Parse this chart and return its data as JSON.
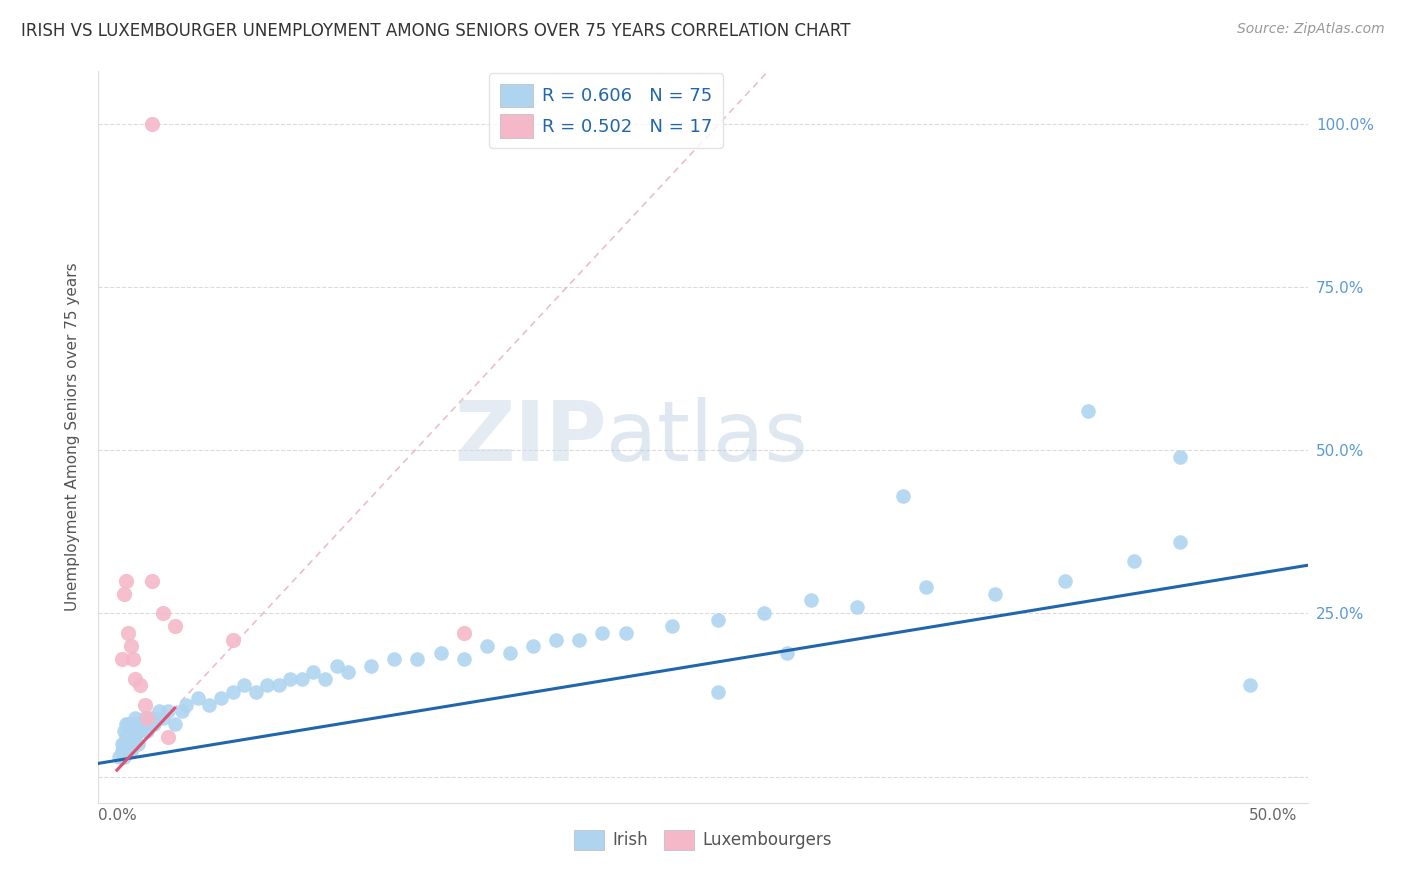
{
  "title": "IRISH VS LUXEMBOURGER UNEMPLOYMENT AMONG SENIORS OVER 75 YEARS CORRELATION CHART",
  "source": "Source: ZipAtlas.com",
  "ylabel_label": "Unemployment Among Seniors over 75 years",
  "xlim": [
    -0.008,
    0.515
  ],
  "ylim": [
    -0.04,
    1.08
  ],
  "irish_R": 0.606,
  "irish_N": 75,
  "lux_R": 0.502,
  "lux_N": 17,
  "irish_color": "#aed4f0",
  "irish_line_color": "#2166ac",
  "lux_color": "#f4b8c8",
  "lux_line_color": "#e05070",
  "lux_dash_color": "#e8a0b0",
  "watermark_zip": "ZIP",
  "watermark_atlas": "atlas",
  "irish_x": [
    0.001,
    0.002,
    0.002,
    0.003,
    0.003,
    0.003,
    0.004,
    0.004,
    0.004,
    0.005,
    0.005,
    0.005,
    0.006,
    0.006,
    0.007,
    0.007,
    0.008,
    0.008,
    0.009,
    0.009,
    0.01,
    0.011,
    0.012,
    0.013,
    0.014,
    0.015,
    0.016,
    0.018,
    0.02,
    0.022,
    0.025,
    0.028,
    0.03,
    0.035,
    0.04,
    0.045,
    0.05,
    0.055,
    0.06,
    0.065,
    0.07,
    0.075,
    0.08,
    0.085,
    0.09,
    0.095,
    0.1,
    0.11,
    0.12,
    0.13,
    0.14,
    0.15,
    0.16,
    0.17,
    0.18,
    0.19,
    0.2,
    0.21,
    0.22,
    0.24,
    0.26,
    0.28,
    0.3,
    0.32,
    0.35,
    0.38,
    0.41,
    0.44,
    0.46,
    0.34,
    0.29,
    0.26,
    0.42,
    0.46,
    0.49
  ],
  "irish_y": [
    0.03,
    0.04,
    0.05,
    0.03,
    0.05,
    0.07,
    0.04,
    0.06,
    0.08,
    0.05,
    0.06,
    0.08,
    0.04,
    0.07,
    0.05,
    0.08,
    0.06,
    0.09,
    0.05,
    0.08,
    0.07,
    0.08,
    0.09,
    0.07,
    0.08,
    0.09,
    0.08,
    0.1,
    0.09,
    0.1,
    0.08,
    0.1,
    0.11,
    0.12,
    0.11,
    0.12,
    0.13,
    0.14,
    0.13,
    0.14,
    0.14,
    0.15,
    0.15,
    0.16,
    0.15,
    0.17,
    0.16,
    0.17,
    0.18,
    0.18,
    0.19,
    0.18,
    0.2,
    0.19,
    0.2,
    0.21,
    0.21,
    0.22,
    0.22,
    0.23,
    0.24,
    0.25,
    0.27,
    0.26,
    0.29,
    0.28,
    0.3,
    0.33,
    0.36,
    0.43,
    0.19,
    0.13,
    0.56,
    0.49,
    0.14
  ],
  "lux_x": [
    0.002,
    0.003,
    0.004,
    0.005,
    0.006,
    0.007,
    0.008,
    0.01,
    0.012,
    0.015,
    0.02,
    0.025,
    0.05,
    0.15,
    0.015,
    0.022,
    0.013
  ],
  "lux_y": [
    0.18,
    0.28,
    0.3,
    0.22,
    0.2,
    0.18,
    0.15,
    0.14,
    0.11,
    0.3,
    0.25,
    0.23,
    0.21,
    0.22,
    1.0,
    0.06,
    0.09
  ],
  "lux_slope": 3.8,
  "lux_intercept": 0.01,
  "lux_line_x_end": 0.025,
  "irish_slope": 0.58,
  "irish_intercept": 0.025
}
